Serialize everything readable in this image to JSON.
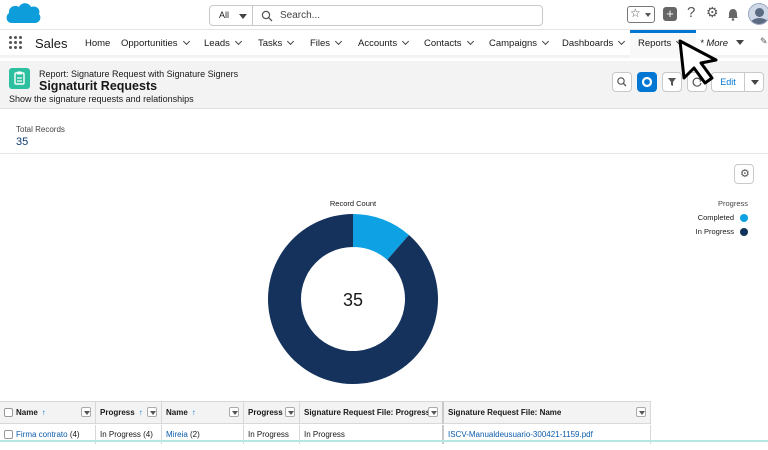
{
  "search": {
    "scope": "All",
    "placeholder": "Search..."
  },
  "app": {
    "name": "Sales"
  },
  "nav": {
    "items": [
      "Home",
      "Opportunities",
      "Leads",
      "Tasks",
      "Files",
      "Accounts",
      "Contacts",
      "Campaigns",
      "Dashboards",
      "Reports",
      "* More"
    ]
  },
  "header": {
    "report_type": "Report: Signature Request with Signature Signers",
    "title": "Signaturit Requests",
    "description": "Show the signature requests and relationships",
    "edit_label": "Edit"
  },
  "summary": {
    "label": "Total Records",
    "value": "35"
  },
  "chart_data": {
    "type": "pie",
    "title": "Record Count",
    "center_label": "35",
    "legend_title": "Progress",
    "legend_position": "right",
    "categories": [
      "Completed",
      "In Progress"
    ],
    "values": [
      4,
      31
    ],
    "colors": [
      "#0ea1e3",
      "#14325c"
    ]
  },
  "table": {
    "headers": [
      "Name",
      "Progress",
      "Name",
      "Progress",
      "Signature Request File: Progress",
      "Signature Request File: Name"
    ],
    "sort_arrow": "↑",
    "row": [
      "Firma contrato",
      "(4)",
      "In Progress (4)",
      "Mireia",
      "(2)",
      "In Progress",
      "In Progress",
      "ISCV-Manualdeusuario-300421-1159.pdf"
    ]
  },
  "colors": {
    "brand": "#0176d3",
    "report_icon": "#2cc0a0"
  }
}
